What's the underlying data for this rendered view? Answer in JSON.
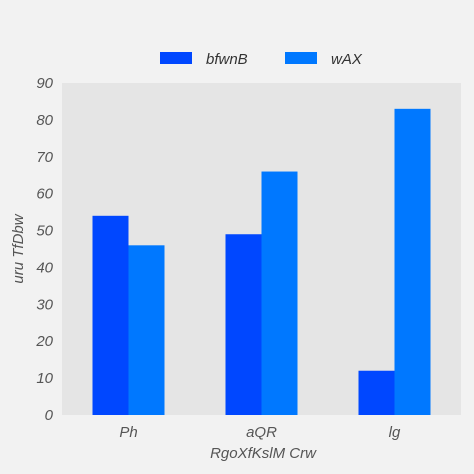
{
  "chart_data": {
    "type": "bar",
    "title": "",
    "xlabel": "RgoXfKslM Crw",
    "ylabel": "uru TfDbw",
    "categories": [
      "Ph",
      "aQR",
      "lg"
    ],
    "series": [
      {
        "name": "bfwnB",
        "color": "#0047ff",
        "values": [
          54,
          49,
          12
        ]
      },
      {
        "name": "wAX",
        "color": "#0078ff",
        "values": [
          46,
          66,
          83
        ]
      }
    ],
    "ylim": [
      0,
      90
    ],
    "yticks": [
      0,
      10,
      20,
      30,
      40,
      50,
      60,
      70,
      80,
      90
    ],
    "grid": false,
    "legend_position": "top-center",
    "plot_background": "#e5e5e5",
    "page_background": "#f2f2f2"
  }
}
